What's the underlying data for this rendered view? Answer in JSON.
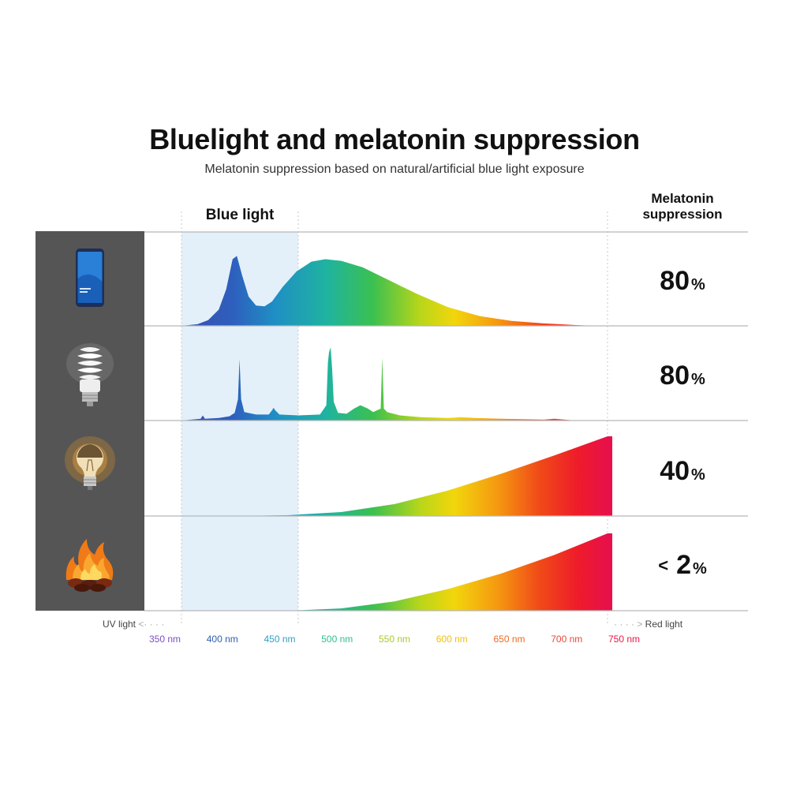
{
  "header": {
    "title": "Bluelight and melatonin suppression",
    "subtitle": "Melatonin suppression based on natural/artificial blue light exposure",
    "blue_light_label": "Blue light",
    "melatonin_label": "Melatonin suppression"
  },
  "chart_data": {
    "type": "area",
    "title": "Bluelight and melatonin suppression",
    "subtitle": "Melatonin suppression based on natural/artificial blue light exposure",
    "xlabel": "",
    "ylabel": "",
    "x_unit": "nm",
    "xlim": [
      350,
      750
    ],
    "highlight_band": {
      "label": "Blue light",
      "from": 350,
      "to": 450
    },
    "ticks": [
      {
        "value": 350,
        "label": "350 nm",
        "color": "#7a4fc4"
      },
      {
        "value": 400,
        "label": "400 nm",
        "color": "#2f5fb0"
      },
      {
        "value": 450,
        "label": "450 nm",
        "color": "#2fa0c0"
      },
      {
        "value": 500,
        "label": "500 nm",
        "color": "#2fbf8a"
      },
      {
        "value": 550,
        "label": "550 nm",
        "color": "#a6cc2a"
      },
      {
        "value": 600,
        "label": "600 nm",
        "color": "#f0c010"
      },
      {
        "value": 650,
        "label": "650 nm",
        "color": "#f06a20"
      },
      {
        "value": 700,
        "label": "700 nm",
        "color": "#e8483a"
      },
      {
        "value": 750,
        "label": "750 nm",
        "color": "#e8184a"
      }
    ],
    "left_edge_label": "UV light",
    "right_edge_label": "Red light",
    "sources": [
      {
        "icon": "smartphone-icon",
        "suppression": "80",
        "suppression_prefix": "",
        "unit": "%",
        "spectrum": [
          [
            350,
            0.0
          ],
          [
            365,
            0.02
          ],
          [
            375,
            0.07
          ],
          [
            385,
            0.2
          ],
          [
            392,
            0.45
          ],
          [
            398,
            0.82
          ],
          [
            402,
            0.86
          ],
          [
            407,
            0.62
          ],
          [
            413,
            0.36
          ],
          [
            420,
            0.25
          ],
          [
            428,
            0.24
          ],
          [
            435,
            0.3
          ],
          [
            445,
            0.48
          ],
          [
            458,
            0.67
          ],
          [
            472,
            0.79
          ],
          [
            485,
            0.82
          ],
          [
            500,
            0.8
          ],
          [
            520,
            0.72
          ],
          [
            545,
            0.56
          ],
          [
            570,
            0.4
          ],
          [
            600,
            0.23
          ],
          [
            630,
            0.12
          ],
          [
            660,
            0.06
          ],
          [
            690,
            0.03
          ],
          [
            720,
            0.01
          ],
          [
            740,
            0.0
          ],
          [
            750,
            0.0
          ]
        ]
      },
      {
        "icon": "cfl-bulb-icon",
        "suppression": "80",
        "suppression_prefix": "",
        "unit": "%",
        "spectrum": [
          [
            350,
            0.0
          ],
          [
            368,
            0.02
          ],
          [
            370,
            0.06
          ],
          [
            372,
            0.02
          ],
          [
            385,
            0.03
          ],
          [
            395,
            0.05
          ],
          [
            400,
            0.09
          ],
          [
            403,
            0.25
          ],
          [
            404.5,
            0.72
          ],
          [
            406,
            0.25
          ],
          [
            409,
            0.1
          ],
          [
            420,
            0.07
          ],
          [
            432,
            0.07
          ],
          [
            435,
            0.12
          ],
          [
            436.5,
            0.15
          ],
          [
            438,
            0.12
          ],
          [
            442,
            0.07
          ],
          [
            460,
            0.06
          ],
          [
            480,
            0.07
          ],
          [
            486,
            0.18
          ],
          [
            487.5,
            0.68
          ],
          [
            488.5,
            0.8
          ],
          [
            490,
            0.86
          ],
          [
            491.5,
            0.6
          ],
          [
            493,
            0.22
          ],
          [
            497,
            0.09
          ],
          [
            505,
            0.08
          ],
          [
            512,
            0.14
          ],
          [
            518,
            0.18
          ],
          [
            525,
            0.14
          ],
          [
            530,
            0.1
          ],
          [
            537,
            0.14
          ],
          [
            538.5,
            0.74
          ],
          [
            540,
            0.14
          ],
          [
            543,
            0.1
          ],
          [
            555,
            0.06
          ],
          [
            575,
            0.04
          ],
          [
            600,
            0.03
          ],
          [
            612,
            0.04
          ],
          [
            625,
            0.03
          ],
          [
            650,
            0.02
          ],
          [
            690,
            0.01
          ],
          [
            700,
            0.02
          ],
          [
            720,
            0.0
          ],
          [
            750,
            0.0
          ]
        ]
      },
      {
        "icon": "incandescent-bulb-icon",
        "suppression": "40",
        "suppression_prefix": "",
        "unit": "%",
        "spectrum": [
          [
            350,
            0.0
          ],
          [
            400,
            0.0
          ],
          [
            450,
            0.01
          ],
          [
            500,
            0.05
          ],
          [
            550,
            0.15
          ],
          [
            600,
            0.32
          ],
          [
            650,
            0.53
          ],
          [
            700,
            0.76
          ],
          [
            750,
            1.0
          ]
        ]
      },
      {
        "icon": "campfire-icon",
        "suppression": "2",
        "suppression_prefix": "<",
        "unit": "%",
        "spectrum": [
          [
            350,
            0.0
          ],
          [
            400,
            0.0
          ],
          [
            450,
            0.0
          ],
          [
            500,
            0.03
          ],
          [
            550,
            0.12
          ],
          [
            600,
            0.28
          ],
          [
            650,
            0.48
          ],
          [
            700,
            0.72
          ],
          [
            750,
            1.0
          ]
        ]
      }
    ]
  }
}
